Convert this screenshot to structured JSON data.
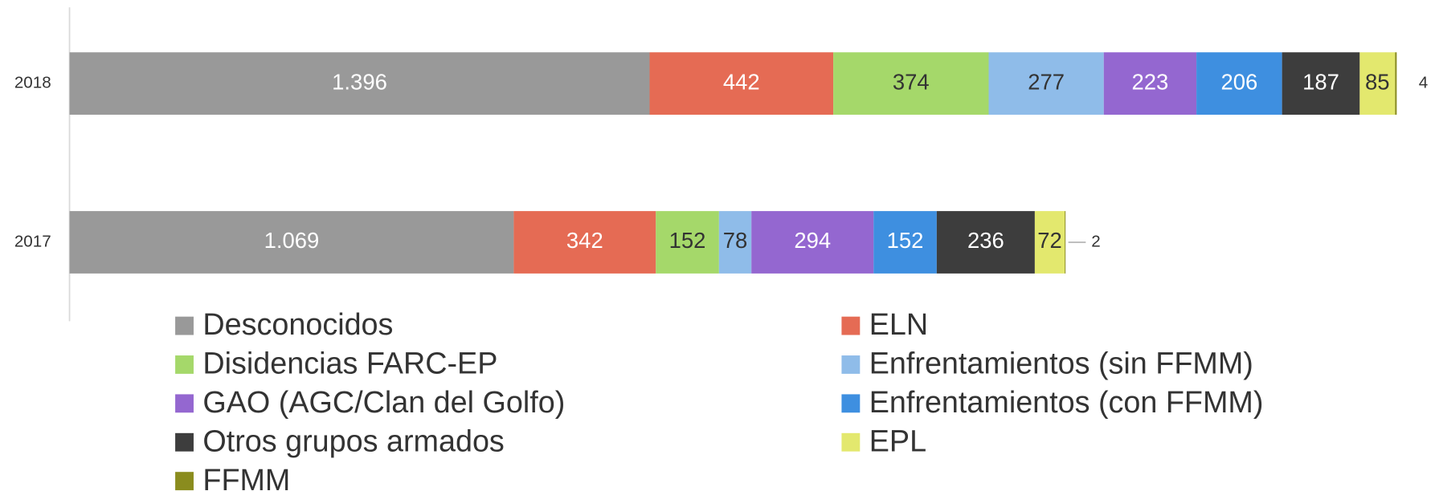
{
  "chart_data": {
    "type": "stacked_barh",
    "categories": [
      "2018",
      "2017"
    ],
    "xlim": [
      0,
      3194
    ],
    "legend": "bottom",
    "series": [
      {
        "name": "Desconocidos",
        "color": "#999999",
        "values": [
          1396,
          1069
        ],
        "value_labels": [
          "1.396",
          "1.069"
        ]
      },
      {
        "name": "ELN",
        "color": "#e56b54",
        "values": [
          442,
          342
        ]
      },
      {
        "name": "Disidencias FARC-EP",
        "color": "#a5d86a",
        "values": [
          374,
          152
        ]
      },
      {
        "name": "Enfrentamientos (sin FFMM)",
        "color": "#8fbce9",
        "values": [
          277,
          78
        ]
      },
      {
        "name": "GAO (AGC/Clan del Golfo)",
        "color": "#9467d0",
        "values": [
          223,
          294
        ]
      },
      {
        "name": "Enfrentamientos (con FFMM)",
        "color": "#3e8fe0",
        "values": [
          206,
          152
        ]
      },
      {
        "name": "Otros grupos armados",
        "color": "#3d3d3d",
        "values": [
          187,
          236
        ]
      },
      {
        "name": "EPL",
        "color": "#e3e86e",
        "values": [
          85,
          72
        ]
      },
      {
        "name": "FFMM",
        "color": "#8a8c1e",
        "values": [
          4,
          2
        ]
      }
    ]
  }
}
